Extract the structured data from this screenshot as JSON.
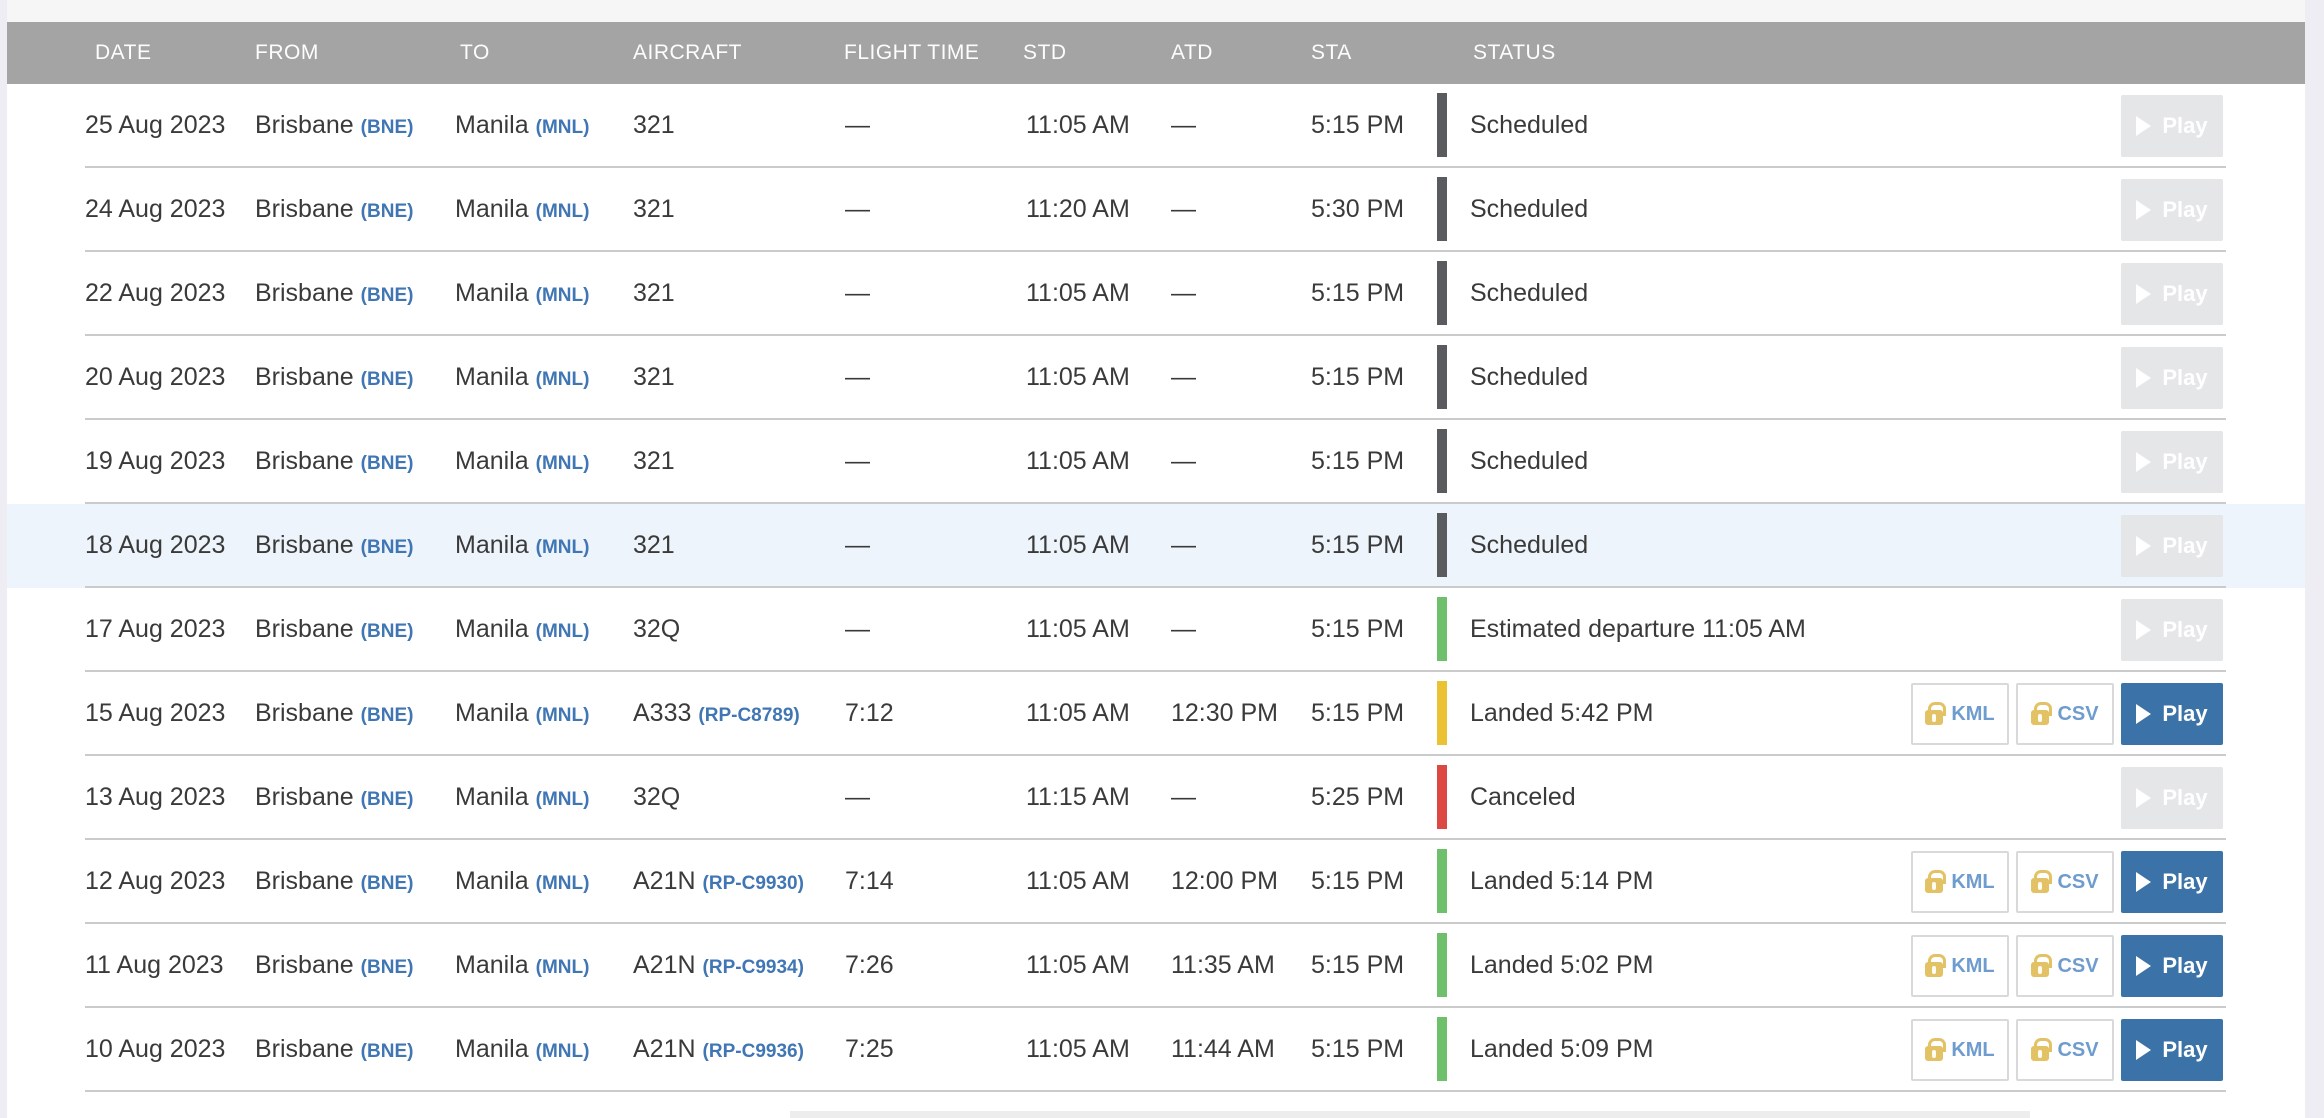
{
  "colors": {
    "page_bg": "#ededf3",
    "card_bg": "#ffffff",
    "top_strip_bg": "#f6f6f7",
    "header_bg": "#a5a4a4",
    "header_text": "#fdfdfd",
    "row_divider": "#cbcbcb",
    "body_text": "#3a3a3a",
    "link_blue": "#4076b4",
    "highlight_row_bg": "#edf4fb",
    "play_enabled_bg": "#3b73a9",
    "play_disabled_bg": "#e4e6e8",
    "file_button_text": "#6f9cce",
    "lock_gold": "#e3c266",
    "status_bar_colors": {
      "scheduled": "#5a5b5e",
      "green": "#6fc06c",
      "amber": "#eac233",
      "red": "#dc4843"
    }
  },
  "header": {
    "columns": [
      {
        "id": "date",
        "label": "DATE"
      },
      {
        "id": "from",
        "label": "FROM"
      },
      {
        "id": "to",
        "label": "TO"
      },
      {
        "id": "aircraft",
        "label": "AIRCRAFT"
      },
      {
        "id": "flight_time",
        "label": "FLIGHT TIME"
      },
      {
        "id": "std",
        "label": "STD"
      },
      {
        "id": "atd",
        "label": "ATD"
      },
      {
        "id": "sta",
        "label": "STA"
      },
      {
        "id": "status",
        "label": "STATUS"
      }
    ]
  },
  "buttons": {
    "kml_label": "KML",
    "csv_label": "CSV",
    "play_label": "Play"
  },
  "icons": {
    "lock": "lock-icon",
    "play": "play-triangle-icon"
  },
  "rows": [
    {
      "date": "25 Aug 2023",
      "from_city": "Brisbane",
      "from_code": "(BNE)",
      "to_city": "Manila",
      "to_code": "(MNL)",
      "aircraft": "321",
      "registration": "",
      "flight_time": "—",
      "std": "11:05 AM",
      "atd": "—",
      "sta": "5:15 PM",
      "status": "Scheduled",
      "bar": "scheduled",
      "highlighted": false,
      "show_files": false,
      "play_enabled": false
    },
    {
      "date": "24 Aug 2023",
      "from_city": "Brisbane",
      "from_code": "(BNE)",
      "to_city": "Manila",
      "to_code": "(MNL)",
      "aircraft": "321",
      "registration": "",
      "flight_time": "—",
      "std": "11:20 AM",
      "atd": "—",
      "sta": "5:30 PM",
      "status": "Scheduled",
      "bar": "scheduled",
      "highlighted": false,
      "show_files": false,
      "play_enabled": false
    },
    {
      "date": "22 Aug 2023",
      "from_city": "Brisbane",
      "from_code": "(BNE)",
      "to_city": "Manila",
      "to_code": "(MNL)",
      "aircraft": "321",
      "registration": "",
      "flight_time": "—",
      "std": "11:05 AM",
      "atd": "—",
      "sta": "5:15 PM",
      "status": "Scheduled",
      "bar": "scheduled",
      "highlighted": false,
      "show_files": false,
      "play_enabled": false
    },
    {
      "date": "20 Aug 2023",
      "from_city": "Brisbane",
      "from_code": "(BNE)",
      "to_city": "Manila",
      "to_code": "(MNL)",
      "aircraft": "321",
      "registration": "",
      "flight_time": "—",
      "std": "11:05 AM",
      "atd": "—",
      "sta": "5:15 PM",
      "status": "Scheduled",
      "bar": "scheduled",
      "highlighted": false,
      "show_files": false,
      "play_enabled": false
    },
    {
      "date": "19 Aug 2023",
      "from_city": "Brisbane",
      "from_code": "(BNE)",
      "to_city": "Manila",
      "to_code": "(MNL)",
      "aircraft": "321",
      "registration": "",
      "flight_time": "—",
      "std": "11:05 AM",
      "atd": "—",
      "sta": "5:15 PM",
      "status": "Scheduled",
      "bar": "scheduled",
      "highlighted": false,
      "show_files": false,
      "play_enabled": false
    },
    {
      "date": "18 Aug 2023",
      "from_city": "Brisbane",
      "from_code": "(BNE)",
      "to_city": "Manila",
      "to_code": "(MNL)",
      "aircraft": "321",
      "registration": "",
      "flight_time": "—",
      "std": "11:05 AM",
      "atd": "—",
      "sta": "5:15 PM",
      "status": "Scheduled",
      "bar": "scheduled",
      "highlighted": true,
      "show_files": false,
      "play_enabled": false
    },
    {
      "date": "17 Aug 2023",
      "from_city": "Brisbane",
      "from_code": "(BNE)",
      "to_city": "Manila",
      "to_code": "(MNL)",
      "aircraft": "32Q",
      "registration": "",
      "flight_time": "—",
      "std": "11:05 AM",
      "atd": "—",
      "sta": "5:15 PM",
      "status": "Estimated departure 11:05 AM",
      "bar": "green",
      "highlighted": false,
      "show_files": false,
      "play_enabled": false
    },
    {
      "date": "15 Aug 2023",
      "from_city": "Brisbane",
      "from_code": "(BNE)",
      "to_city": "Manila",
      "to_code": "(MNL)",
      "aircraft": "A333",
      "registration": "(RP-C8789)",
      "flight_time": "7:12",
      "std": "11:05 AM",
      "atd": "12:30 PM",
      "sta": "5:15 PM",
      "status": "Landed 5:42 PM",
      "bar": "amber",
      "highlighted": false,
      "show_files": true,
      "play_enabled": true
    },
    {
      "date": "13 Aug 2023",
      "from_city": "Brisbane",
      "from_code": "(BNE)",
      "to_city": "Manila",
      "to_code": "(MNL)",
      "aircraft": "32Q",
      "registration": "",
      "flight_time": "—",
      "std": "11:15 AM",
      "atd": "—",
      "sta": "5:25 PM",
      "status": "Canceled",
      "bar": "red",
      "highlighted": false,
      "show_files": false,
      "play_enabled": false
    },
    {
      "date": "12 Aug 2023",
      "from_city": "Brisbane",
      "from_code": "(BNE)",
      "to_city": "Manila",
      "to_code": "(MNL)",
      "aircraft": "A21N",
      "registration": "(RP-C9930)",
      "flight_time": "7:14",
      "std": "11:05 AM",
      "atd": "12:00 PM",
      "sta": "5:15 PM",
      "status": "Landed 5:14 PM",
      "bar": "green",
      "highlighted": false,
      "show_files": true,
      "play_enabled": true
    },
    {
      "date": "11 Aug 2023",
      "from_city": "Brisbane",
      "from_code": "(BNE)",
      "to_city": "Manila",
      "to_code": "(MNL)",
      "aircraft": "A21N",
      "registration": "(RP-C9934)",
      "flight_time": "7:26",
      "std": "11:05 AM",
      "atd": "11:35 AM",
      "sta": "5:15 PM",
      "status": "Landed 5:02 PM",
      "bar": "green",
      "highlighted": false,
      "show_files": true,
      "play_enabled": true
    },
    {
      "date": "10 Aug 2023",
      "from_city": "Brisbane",
      "from_code": "(BNE)",
      "to_city": "Manila",
      "to_code": "(MNL)",
      "aircraft": "A21N",
      "registration": "(RP-C9936)",
      "flight_time": "7:25",
      "std": "11:05 AM",
      "atd": "11:44 AM",
      "sta": "5:15 PM",
      "status": "Landed 5:09 PM",
      "bar": "green",
      "highlighted": false,
      "show_files": true,
      "play_enabled": true
    }
  ]
}
